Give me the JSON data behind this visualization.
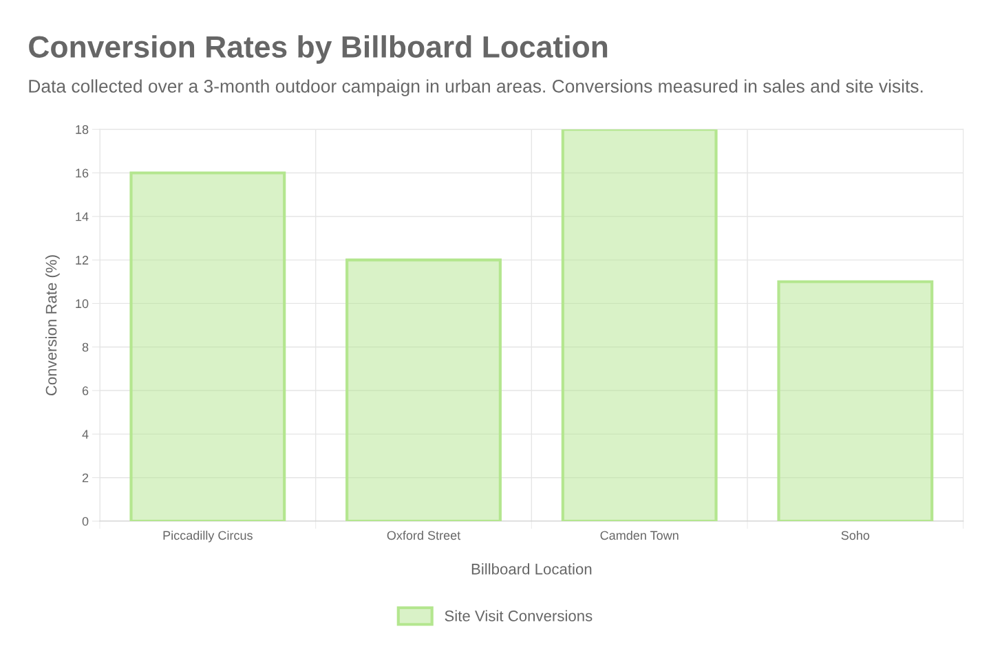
{
  "chart_data": {
    "type": "bar",
    "title": "Conversion Rates by Billboard Location",
    "subtitle": "Data collected over a 3-month outdoor campaign in urban areas. Conversions measured in sales and site visits.",
    "xlabel": "Billboard Location",
    "ylabel": "Conversion Rate (%)",
    "categories": [
      "Piccadilly Circus",
      "Oxford Street",
      "Camden Town",
      "Soho"
    ],
    "series": [
      {
        "name": "Site Visit Conversions",
        "color": "#b4e68f",
        "values": [
          16,
          12,
          18,
          11
        ]
      }
    ],
    "ylim": [
      0,
      18
    ],
    "yticks": [
      0,
      2,
      4,
      6,
      8,
      10,
      12,
      14,
      16,
      18
    ],
    "grid": true,
    "legend": "bottom"
  }
}
